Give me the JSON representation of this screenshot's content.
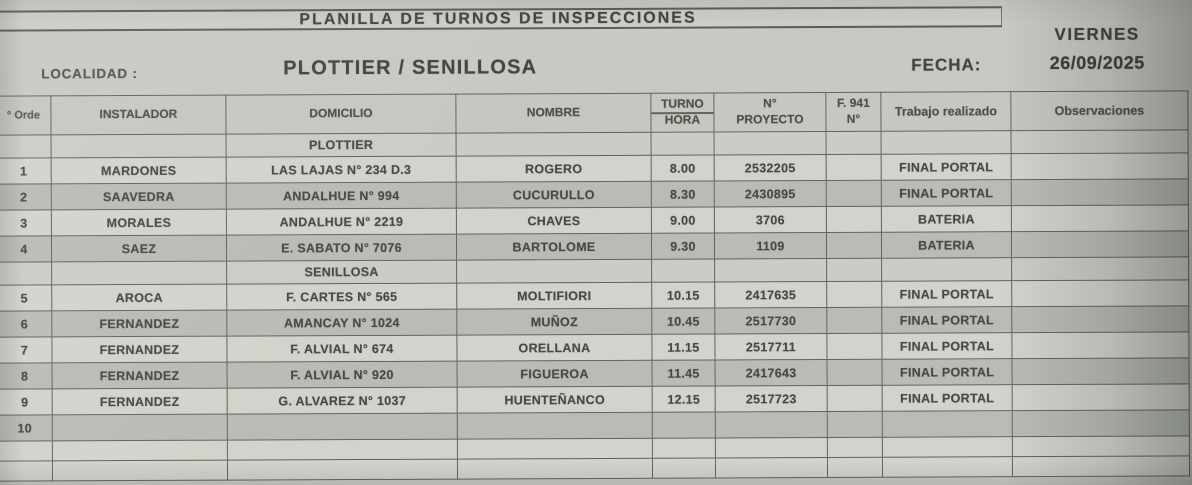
{
  "header": {
    "title": "PLANILLA DE TURNOS DE INSPECCIONES",
    "weekday": "VIERNES",
    "fecha_label": "FECHA:",
    "fecha_value": "26/09/2025",
    "localidad_label": "LOCALIDAD :",
    "localidad_value": "PLOTTIER / SENILLOSA"
  },
  "table": {
    "headers": [
      "° Orde",
      "INSTALADOR",
      "DOMICILIO",
      "NOMBRE",
      "TURNO\nHORA",
      "N°\nPROYECTO",
      "F. 941\nN°",
      "Trabajo realizado",
      "Observaciones"
    ],
    "rows": [
      {
        "type": "section",
        "shade": "light",
        "cells": [
          "",
          "",
          "PLOTTIER",
          "",
          "",
          "",
          "",
          "",
          ""
        ]
      },
      {
        "type": "data",
        "shade": "light",
        "cells": [
          "1",
          "MARDONES",
          "LAS LAJAS N° 234 D.3",
          "ROGERO",
          "8.00",
          "2532205",
          "",
          "FINAL PORTAL",
          ""
        ]
      },
      {
        "type": "data",
        "shade": "dark",
        "cells": [
          "2",
          "SAAVEDRA",
          "ANDALHUE N° 994",
          "CUCURULLO",
          "8.30",
          "2430895",
          "",
          "FINAL PORTAL",
          ""
        ]
      },
      {
        "type": "data",
        "shade": "light",
        "cells": [
          "3",
          "MORALES",
          "ANDALHUE N° 2219",
          "CHAVES",
          "9.00",
          "3706",
          "",
          "BATERIA",
          ""
        ]
      },
      {
        "type": "data",
        "shade": "dark",
        "cells": [
          "4",
          "SAEZ",
          "E. SABATO N° 7076",
          "BARTOLOME",
          "9.30",
          "1109",
          "",
          "BATERIA",
          ""
        ]
      },
      {
        "type": "section",
        "shade": "light",
        "cells": [
          "",
          "",
          "SENILLOSA",
          "",
          "",
          "",
          "",
          "",
          ""
        ]
      },
      {
        "type": "data",
        "shade": "light",
        "cells": [
          "5",
          "AROCA",
          "F. CARTES N° 565",
          "MOLTIFIORI",
          "10.15",
          "2417635",
          "",
          "FINAL PORTAL",
          ""
        ]
      },
      {
        "type": "data",
        "shade": "dark",
        "cells": [
          "6",
          "FERNANDEZ",
          "AMANCAY N° 1024",
          "MUÑOZ",
          "10.45",
          "2517730",
          "",
          "FINAL PORTAL",
          ""
        ]
      },
      {
        "type": "data",
        "shade": "light",
        "cells": [
          "7",
          "FERNANDEZ",
          "F. ALVIAL N° 674",
          "ORELLANA",
          "11.15",
          "2517711",
          "",
          "FINAL PORTAL",
          ""
        ]
      },
      {
        "type": "data",
        "shade": "dark",
        "cells": [
          "8",
          "FERNANDEZ",
          "F. ALVIAL N° 920",
          "FIGUEROA",
          "11.45",
          "2417643",
          "",
          "FINAL PORTAL",
          ""
        ]
      },
      {
        "type": "data",
        "shade": "light",
        "cells": [
          "9",
          "FERNANDEZ",
          "G. ALVAREZ N° 1037",
          "HUENTEÑANCO",
          "12.15",
          "2517723",
          "",
          "FINAL PORTAL",
          ""
        ]
      },
      {
        "type": "data",
        "shade": "dark",
        "cells": [
          "10",
          "",
          "",
          "",
          "",
          "",
          "",
          "",
          ""
        ]
      },
      {
        "type": "empty",
        "shade": "light",
        "cells": [
          "",
          "",
          "",
          "",
          "",
          "",
          "",
          "",
          ""
        ]
      },
      {
        "type": "empty",
        "shade": "light",
        "cells": [
          "",
          "",
          "",
          "",
          "",
          "",
          "",
          "",
          ""
        ]
      }
    ]
  },
  "colors": {
    "paper": "#c7c9c2",
    "cell_light": "#d1d4cc",
    "cell_dark": "#b9bcb5",
    "grid_line": "#63655b",
    "ink": "#474a42"
  }
}
